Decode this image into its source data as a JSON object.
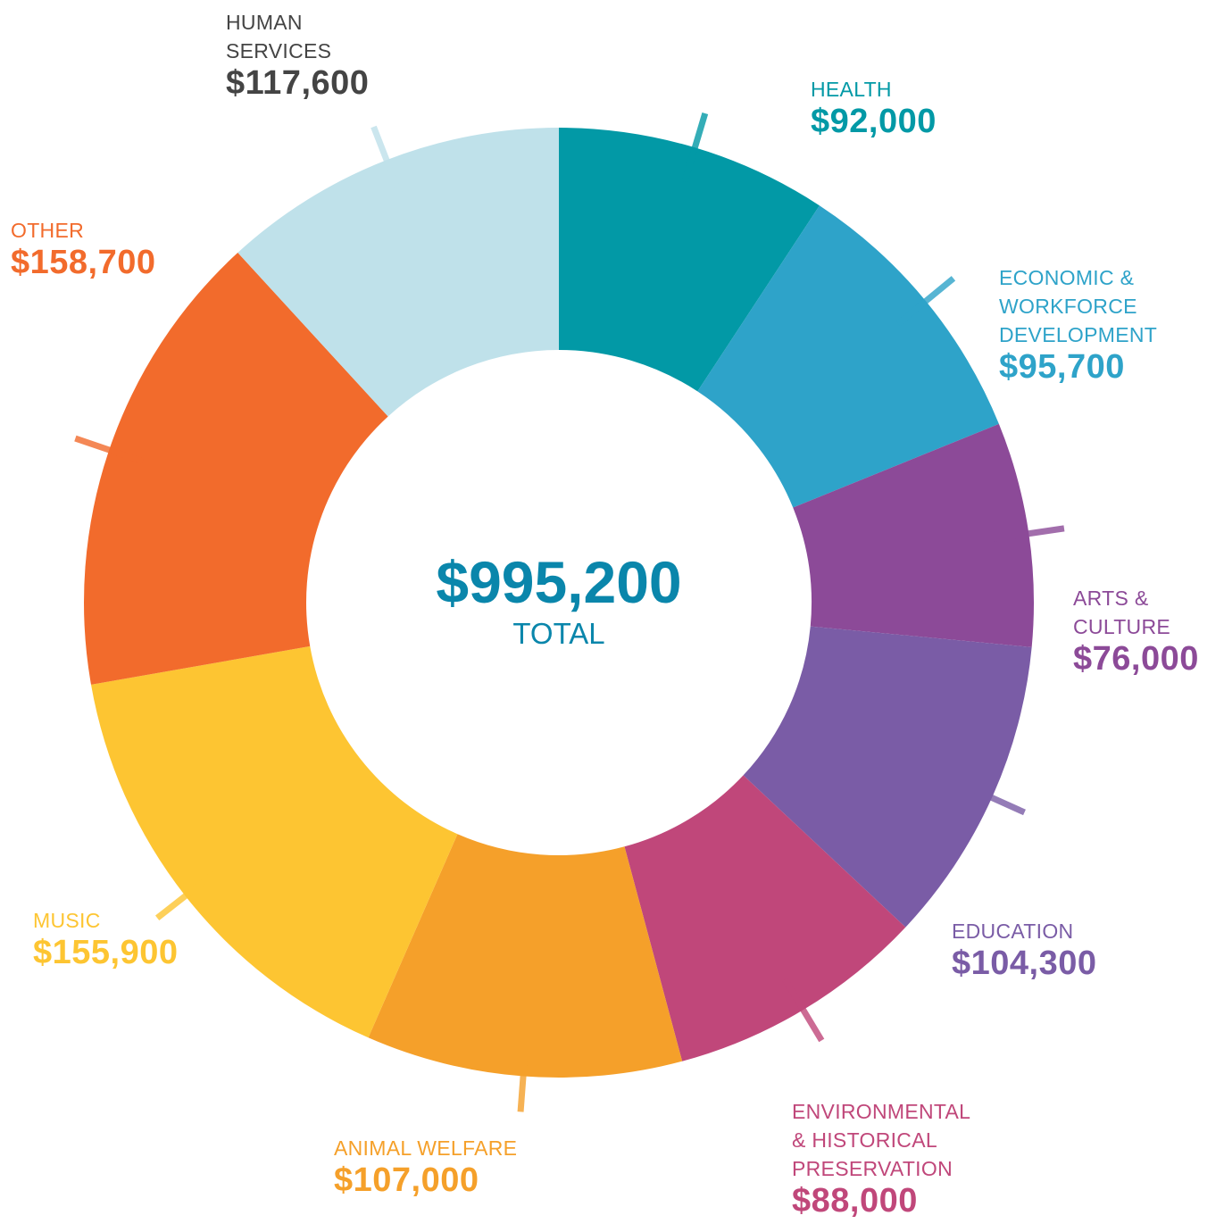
{
  "chart_data": {
    "type": "donut",
    "categories": [
      "HEALTH",
      "ECONOMIC &\nWORKFORCE\nDEVELOPMENT",
      "ARTS &\nCULTURE",
      "EDUCATION",
      "ENVIRONMENTAL\n& HISTORICAL\nPRESERVATION",
      "ANIMAL WELFARE",
      "MUSIC",
      "OTHER",
      "HUMAN\nSERVICES"
    ],
    "values": [
      92000,
      95700,
      76000,
      104300,
      88000,
      107000,
      155900,
      158700,
      117600
    ],
    "value_labels": [
      "$92,000",
      "$95,700",
      "$76,000",
      "$104,300",
      "$88,000",
      "$107,000",
      "$155,900",
      "$158,700",
      "$117,600"
    ],
    "colors": [
      "#0299a6",
      "#2ea3c9",
      "#8c4a98",
      "#7a5ca6",
      "#c0477a",
      "#f5a02a",
      "#fdc532",
      "#f26b2c",
      "#bfe1ea"
    ],
    "center_label": "$995,200",
    "center_sublabel": "TOTAL"
  }
}
